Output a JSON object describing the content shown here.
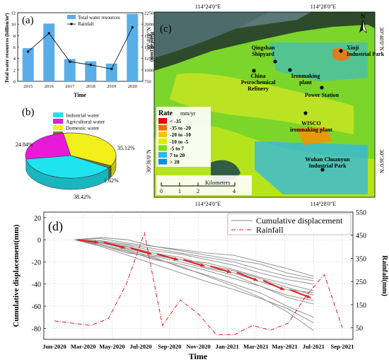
{
  "panels": {
    "a": "(a)",
    "b": "(b)",
    "c": "(c)",
    "d": "(d)"
  },
  "chart_data": [
    {
      "panel": "a",
      "type": "bar+line",
      "categories": [
        "2015",
        "2016",
        "2017",
        "2018",
        "2019",
        "2020"
      ],
      "series": [
        {
          "name": "Total water resources",
          "type": "bar",
          "axis": "left",
          "values": [
            5.8,
            10.1,
            3.9,
            3.5,
            3.1,
            11.8
          ]
        },
        {
          "name": "Rainfall",
          "type": "line",
          "axis": "right",
          "values": [
            1400,
            1800,
            1180,
            1110,
            1020,
            1930
          ]
        }
      ],
      "xlabel": "Time",
      "ylabel": "Total water resources (billion/m³)",
      "y2label": "Rainfall (mm)",
      "ylim": [
        0,
        12
      ],
      "y2lim": [
        750,
        2250
      ],
      "yticks": [
        "0",
        "2",
        "4",
        "6",
        "8",
        "10",
        "12"
      ],
      "y2ticks": [
        "750",
        "1000",
        "1250",
        "1500",
        "1750",
        "2000",
        "2250"
      ],
      "legend_position": "top"
    },
    {
      "panel": "b",
      "type": "pie",
      "labels": [
        "Industrial water",
        "Agricultural water",
        "Domestic water",
        "Others"
      ],
      "values": [
        38.42,
        24.84,
        35.12,
        1.62
      ],
      "value_labels": [
        "38.42%",
        "24.84%",
        "35.12%",
        "1.62%"
      ],
      "colors": [
        "#1fe3ef",
        "#e81ad8",
        "#f2ef1a",
        "#7a7a2a"
      ],
      "legend_position": "top"
    },
    {
      "panel": "d",
      "type": "line",
      "xticks": [
        "Jun-2020",
        "Mar-2020",
        "May-2020",
        "Jul-2020",
        "Sep-2020",
        "Nov-2020",
        "Jan-2021",
        "Mar-2021",
        "May-2021",
        "Jul-2021",
        "Sep-2021"
      ],
      "xlabel": "Time",
      "ylabel": "Cumulative displacement(mm)",
      "y2label": "Rainfall(mm)",
      "ylim": [
        -90,
        25
      ],
      "y2lim": [
        0,
        550
      ],
      "yticks": [
        "20",
        "0",
        "-20",
        "-40",
        "-60",
        "-80"
      ],
      "y2ticks": [
        "50",
        "150",
        "250",
        "350",
        "450",
        "550"
      ],
      "legend": [
        "Cumulative displacement",
        "Rainfall"
      ],
      "legend_position": "top-right",
      "displacement_x": [
        1,
        2,
        3,
        4,
        5,
        6,
        7,
        8,
        9,
        10
      ],
      "displacement_series": [
        [
          0,
          -2,
          -5,
          -10,
          -13,
          -18,
          -23,
          -30,
          -36,
          -40
        ],
        [
          0,
          -3,
          -8,
          -14,
          -18,
          -25,
          -30,
          -38,
          -45,
          -48
        ],
        [
          0,
          -1,
          -4,
          -8,
          -12,
          -16,
          -20,
          -27,
          -33,
          -37
        ],
        [
          0,
          -4,
          -10,
          -18,
          -22,
          -28,
          -35,
          -42,
          -52,
          -58
        ],
        [
          0,
          2,
          0,
          -6,
          -10,
          -14,
          -18,
          -22,
          -30,
          -35
        ],
        [
          0,
          -2,
          -9,
          -16,
          -25,
          -32,
          -40,
          -48,
          -60,
          -70
        ],
        [
          0,
          -5,
          -12,
          -15,
          -20,
          -26,
          -32,
          -42,
          -50,
          -55
        ],
        [
          0,
          1,
          -3,
          -6,
          -9,
          -12,
          -14,
          -20,
          -26,
          -33
        ],
        [
          0,
          -6,
          -14,
          -22,
          -30,
          -38,
          -45,
          -53,
          -62,
          -75
        ],
        [
          0,
          -3,
          -6,
          -12,
          -16,
          -23,
          -28,
          -35,
          -43,
          -50
        ],
        [
          0,
          -1,
          -7,
          -12,
          -18,
          -21,
          -27,
          -34,
          -40,
          -46
        ],
        [
          0,
          -5,
          -11,
          -17,
          -24,
          -33,
          -42,
          -52,
          -65,
          -82
        ]
      ],
      "rainfall_x": [
        0,
        1,
        2,
        3,
        4,
        5,
        6,
        7,
        8,
        9,
        10,
        11,
        12,
        13,
        14,
        15,
        16
      ],
      "rainfall_values": [
        80,
        70,
        60,
        90,
        240,
        460,
        60,
        170,
        110,
        20,
        20,
        60,
        40,
        70,
        190,
        280,
        50
      ]
    }
  ],
  "map": {
    "top_lon": [
      "114°24'0\"E",
      "114°28'0\"E"
    ],
    "bottom_lon": [
      "114°24'0\"E",
      "114°28'0\"E"
    ],
    "left_lat": [
      "30°40'0\"N",
      "30°36'0\"N"
    ],
    "right_lat": [
      "30°40'0\"N",
      "30°36'0\"N"
    ],
    "north": "N",
    "labels": [
      {
        "id": "qingshan",
        "text": "Qingshan\nShipyard"
      },
      {
        "id": "xinji",
        "text": "Xinji\nIndustrial Park"
      },
      {
        "id": "china",
        "text": "China\nPetrochemical\nRefinery"
      },
      {
        "id": "ironmaking",
        "text": "Ironmaking\nplant"
      },
      {
        "id": "power",
        "text": "Power Station"
      },
      {
        "id": "wisco",
        "text": "WISCO\nironmaking plant"
      },
      {
        "id": "wuhan",
        "text": "Wuhan Chuanyun\nIndustrial Park"
      }
    ],
    "legend": {
      "title": "Rate",
      "unit": "mm/yr",
      "items": [
        {
          "label": "< -35",
          "color": "#e60000"
        },
        {
          "label": "-35 to -20",
          "color": "#ff6a00"
        },
        {
          "label": "-20 to -10",
          "color": "#ffc200"
        },
        {
          "label": "-10 to -5",
          "color": "#d8f000"
        },
        {
          "label": "-5 to 7",
          "color": "#7ee000"
        },
        {
          "label": "7 to 20",
          "color": "#2fb7e8"
        },
        {
          "label": "> 20",
          "color": "#0a8de8"
        }
      ]
    },
    "scale_ticks": [
      "0",
      "1",
      "2",
      "4"
    ],
    "scale_label": "Kilometers"
  }
}
